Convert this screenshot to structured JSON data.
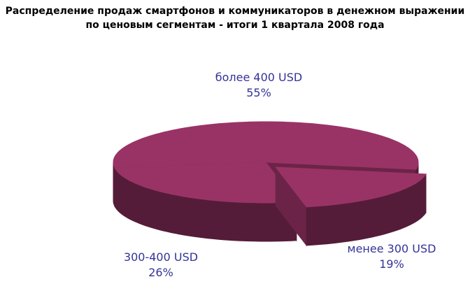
{
  "chart_data": {
    "type": "pie3d",
    "title": "Распределение продаж смартфонов и коммуникаторов в денежном выражении по ценовым сегментам - итоги 1 квартала 2008 года",
    "categories": [
      "более 400 USD",
      "менее 300 USD",
      "300-400 USD"
    ],
    "values": [
      55,
      19,
      26
    ],
    "value_labels": [
      "55%",
      "19%",
      "26%"
    ],
    "colors": [
      "#993366",
      "#993366",
      "#993366"
    ]
  }
}
